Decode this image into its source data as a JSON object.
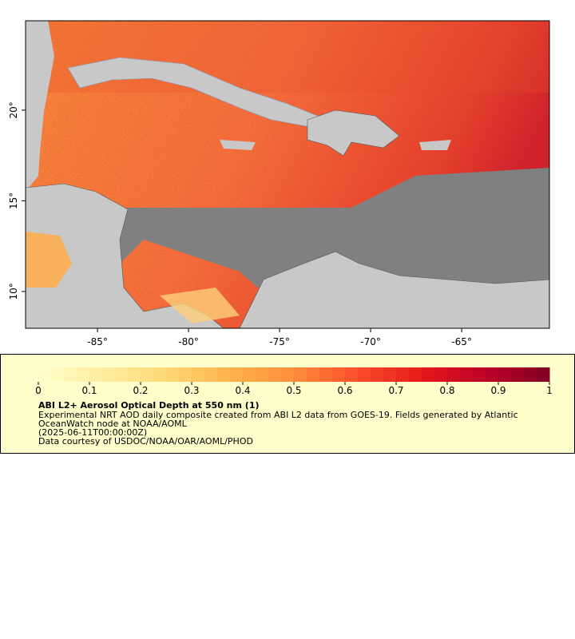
{
  "map": {
    "xlim": [
      -88.95,
      -60.18
    ],
    "ylim": [
      7.97,
      24.93
    ],
    "xticks": [
      {
        "value": -85,
        "label": "-85°"
      },
      {
        "value": -80,
        "label": "-80°"
      },
      {
        "value": -75,
        "label": "-75°"
      },
      {
        "value": -70,
        "label": "-70°"
      },
      {
        "value": -65,
        "label": "-65°"
      }
    ],
    "yticks": [
      {
        "value": 10,
        "label": "10°"
      },
      {
        "value": 15,
        "label": "15°"
      },
      {
        "value": 20,
        "label": "20°"
      }
    ]
  },
  "colorbar": {
    "lim": [
      0,
      1
    ],
    "ticks": [
      0,
      0.1,
      0.2,
      0.3,
      0.4,
      0.5,
      0.6,
      0.7,
      0.8,
      0.9,
      1
    ],
    "colors": [
      "#ffffcc",
      "#ffeda0",
      "#fed976",
      "#feb24c",
      "#fd8d3c",
      "#fc4e2a",
      "#e31a1c",
      "#bd0026",
      "#800026"
    ]
  },
  "legend": {
    "title": "ABI L2+ Aerosol Optical Depth at 550 nm (1)",
    "lines": [
      "Experimental NRT AOD daily composite created from ABI L2 data from GOES-19. Fields generated by Atlantic",
      "OceanWatch node at NOAA/AOML",
      "(2025-06-11T00:00:00Z)",
      "Data courtesy of USDOC/NOAA/OAR/AOML/PHOD"
    ]
  }
}
